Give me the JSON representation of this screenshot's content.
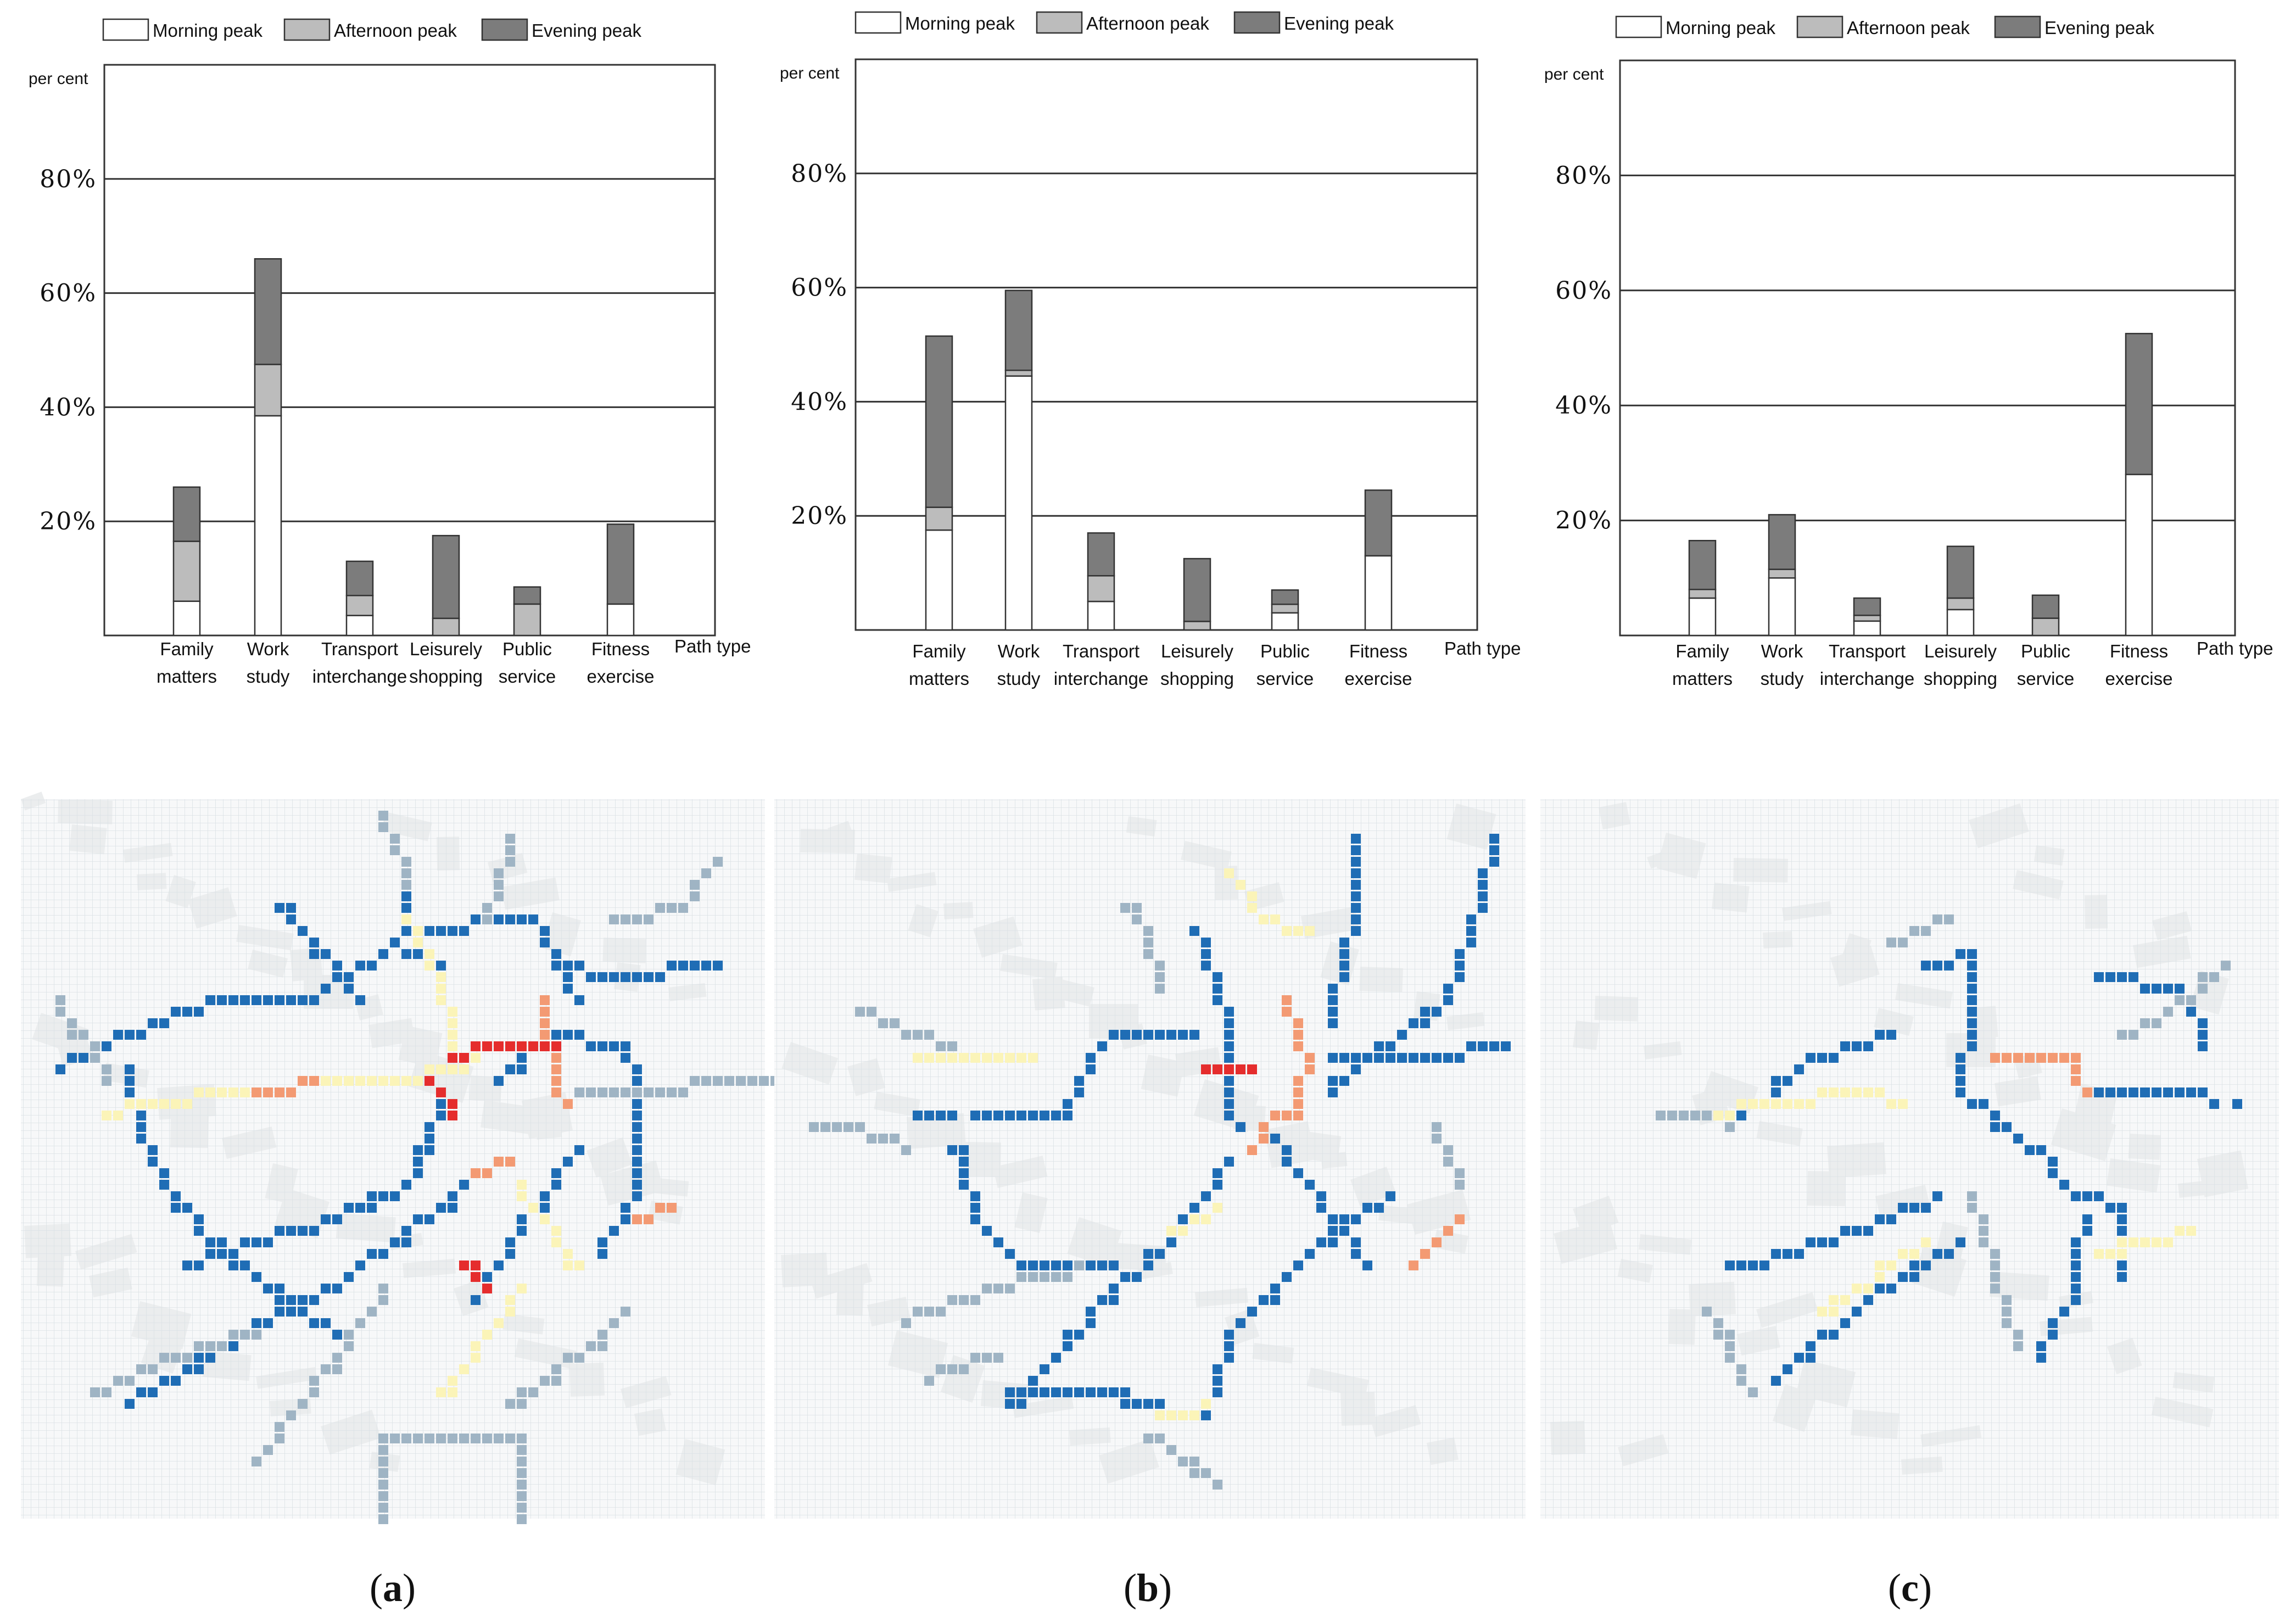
{
  "figure": {
    "legend": [
      "Morning peak",
      "Afternoon peak",
      "Evening peak"
    ],
    "y_unit": "per cent",
    "x_axis_label": "Path type",
    "categories": [
      [
        "Family",
        "matters"
      ],
      [
        "Work",
        "study"
      ],
      [
        "Transport",
        "interchange"
      ],
      [
        "Leisurely",
        "shopping"
      ],
      [
        "Public",
        "service"
      ],
      [
        "Fitness",
        "exercise"
      ]
    ],
    "y_ticks": [
      "20%",
      "40%",
      "60%",
      "80%"
    ],
    "panel_labels": [
      "a",
      "b",
      "c"
    ]
  },
  "colors": {
    "morning": "#ffffff",
    "afternoon": "#bcbcbc",
    "evening": "#7c7c7c",
    "edge": "#333333",
    "heat_blue": "#1f6db5",
    "heat_gray": "#9fb4c4",
    "heat_yellow": "#fbf4b8",
    "heat_orange": "#f39a73",
    "heat_red": "#e52d2d"
  },
  "chart_data": [
    {
      "type": "bar",
      "stacked": true,
      "panel": "a",
      "categories": [
        "Family matters",
        "Work study",
        "Transport interchange",
        "Leisurely shopping",
        "Public service",
        "Fitness exercise"
      ],
      "series": [
        {
          "name": "Morning peak",
          "values": [
            6,
            38.5,
            3.5,
            0,
            0,
            5.5
          ]
        },
        {
          "name": "Afternoon peak",
          "values": [
            10.5,
            9,
            3.5,
            3,
            5.5,
            0
          ]
        },
        {
          "name": "Evening peak",
          "values": [
            9.5,
            18.5,
            6,
            14.5,
            3,
            14
          ]
        }
      ],
      "ylabel": "per cent",
      "xlabel": "Path type",
      "ylim": [
        0,
        100
      ]
    },
    {
      "type": "bar",
      "stacked": true,
      "panel": "b",
      "categories": [
        "Family matters",
        "Work study",
        "Transport interchange",
        "Leisurely shopping",
        "Public service",
        "Fitness exercise"
      ],
      "series": [
        {
          "name": "Morning peak",
          "values": [
            17.5,
            44.5,
            5,
            0,
            3,
            13
          ]
        },
        {
          "name": "Afternoon peak",
          "values": [
            4,
            1,
            4.5,
            1.5,
            1.5,
            0
          ]
        },
        {
          "name": "Evening peak",
          "values": [
            30,
            14,
            7.5,
            11,
            2.5,
            11.5
          ]
        }
      ],
      "ylabel": "per cent",
      "xlabel": "Path type",
      "ylim": [
        0,
        100
      ]
    },
    {
      "type": "bar",
      "stacked": true,
      "panel": "c",
      "categories": [
        "Family matters",
        "Work study",
        "Transport interchange",
        "Leisurely shopping",
        "Public service",
        "Fitness exercise"
      ],
      "series": [
        {
          "name": "Morning peak",
          "values": [
            6.5,
            10,
            2.5,
            4.5,
            0,
            28
          ]
        },
        {
          "name": "Afternoon peak",
          "values": [
            1.5,
            1.5,
            1,
            2,
            3,
            0
          ]
        },
        {
          "name": "Evening peak",
          "values": [
            8.5,
            9.5,
            3,
            9,
            4,
            24.5
          ]
        }
      ],
      "ylabel": "per cent",
      "xlabel": "Path type",
      "ylim": [
        0,
        100
      ]
    }
  ]
}
